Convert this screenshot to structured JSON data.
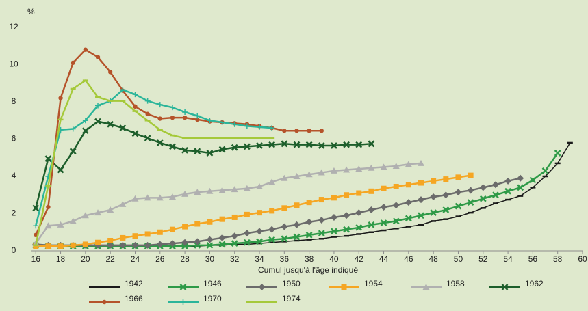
{
  "chart_data": {
    "type": "line",
    "y_unit_label": "%",
    "x_label": "Cumul jusqu'à l'âge indiqué",
    "xlim": [
      15.6,
      60
    ],
    "xticks": [
      16,
      18,
      20,
      22,
      24,
      26,
      28,
      30,
      32,
      34,
      36,
      38,
      40,
      42,
      44,
      46,
      48,
      50,
      52,
      54,
      56,
      58,
      60
    ],
    "ylim": [
      0,
      12
    ],
    "yticks": [
      0,
      2,
      4,
      6,
      8,
      10,
      12
    ],
    "grid": false,
    "series": [
      {
        "name": "1942",
        "color": "#1a1a1a",
        "marker": "dash",
        "x": [
          16,
          17,
          18,
          19,
          20,
          21,
          22,
          23,
          24,
          25,
          26,
          27,
          28,
          29,
          30,
          31,
          32,
          33,
          34,
          35,
          36,
          37,
          38,
          39,
          40,
          41,
          42,
          43,
          44,
          45,
          46,
          47,
          48,
          49,
          50,
          51,
          52,
          53,
          54,
          55,
          56,
          57,
          58,
          59
        ],
        "values": [
          0.3,
          0.25,
          0.25,
          0.25,
          0.25,
          0.25,
          0.25,
          0.25,
          0.25,
          0.25,
          0.25,
          0.25,
          0.25,
          0.25,
          0.3,
          0.3,
          0.35,
          0.35,
          0.4,
          0.45,
          0.5,
          0.55,
          0.6,
          0.65,
          0.75,
          0.8,
          0.9,
          1.0,
          1.1,
          1.2,
          1.3,
          1.4,
          1.6,
          1.7,
          1.85,
          2.05,
          2.3,
          2.55,
          2.75,
          2.95,
          3.4,
          4.0,
          4.7,
          5.8
        ]
      },
      {
        "name": "1946",
        "color": "#2e9a47",
        "marker": "x",
        "x": [
          16,
          17,
          18,
          19,
          20,
          21,
          22,
          23,
          24,
          25,
          26,
          27,
          28,
          29,
          30,
          31,
          32,
          33,
          34,
          35,
          36,
          37,
          38,
          39,
          40,
          41,
          42,
          43,
          44,
          45,
          46,
          47,
          48,
          49,
          50,
          51,
          52,
          53,
          54,
          55,
          56,
          57,
          58
        ],
        "values": [
          0.3,
          0.25,
          0.25,
          0.25,
          0.25,
          0.25,
          0.25,
          0.25,
          0.25,
          0.25,
          0.25,
          0.25,
          0.25,
          0.3,
          0.3,
          0.35,
          0.4,
          0.45,
          0.5,
          0.6,
          0.65,
          0.75,
          0.85,
          0.95,
          1.05,
          1.15,
          1.25,
          1.4,
          1.5,
          1.6,
          1.75,
          1.9,
          2.05,
          2.2,
          2.4,
          2.6,
          2.8,
          3.0,
          3.2,
          3.4,
          3.8,
          4.3,
          5.25
        ]
      },
      {
        "name": "1950",
        "color": "#6b6b6b",
        "marker": "diamond",
        "x": [
          16,
          17,
          18,
          19,
          20,
          21,
          22,
          23,
          24,
          25,
          26,
          27,
          28,
          29,
          30,
          31,
          32,
          33,
          34,
          35,
          36,
          37,
          38,
          39,
          40,
          41,
          42,
          43,
          44,
          45,
          46,
          47,
          48,
          49,
          50,
          51,
          52,
          53,
          54,
          55
        ],
        "values": [
          0.35,
          0.3,
          0.3,
          0.3,
          0.3,
          0.3,
          0.3,
          0.3,
          0.3,
          0.3,
          0.35,
          0.4,
          0.45,
          0.5,
          0.6,
          0.7,
          0.8,
          0.95,
          1.05,
          1.15,
          1.3,
          1.4,
          1.55,
          1.65,
          1.8,
          1.9,
          2.05,
          2.2,
          2.35,
          2.45,
          2.6,
          2.75,
          2.9,
          3.0,
          3.15,
          3.25,
          3.4,
          3.55,
          3.75,
          3.9
        ]
      },
      {
        "name": "1954",
        "color": "#f5a623",
        "marker": "square",
        "x": [
          16,
          17,
          18,
          19,
          20,
          21,
          22,
          23,
          24,
          25,
          26,
          27,
          28,
          29,
          30,
          31,
          32,
          33,
          34,
          35,
          36,
          37,
          38,
          39,
          40,
          41,
          42,
          43,
          44,
          45,
          46,
          47,
          48,
          49,
          50,
          51
        ],
        "values": [
          0.25,
          0.25,
          0.25,
          0.3,
          0.35,
          0.45,
          0.55,
          0.7,
          0.8,
          0.9,
          1.0,
          1.15,
          1.3,
          1.45,
          1.55,
          1.7,
          1.8,
          1.95,
          2.05,
          2.15,
          2.3,
          2.45,
          2.6,
          2.75,
          2.85,
          3.0,
          3.1,
          3.2,
          3.35,
          3.45,
          3.55,
          3.65,
          3.75,
          3.85,
          3.95,
          4.05
        ]
      },
      {
        "name": "1958",
        "color": "#b0b0b0",
        "marker": "triangle",
        "x": [
          16,
          17,
          18,
          19,
          20,
          21,
          22,
          23,
          24,
          25,
          26,
          27,
          28,
          29,
          30,
          31,
          32,
          33,
          34,
          35,
          36,
          37,
          38,
          39,
          40,
          41,
          42,
          43,
          44,
          45,
          46,
          47
        ],
        "values": [
          0.4,
          1.35,
          1.4,
          1.6,
          1.9,
          2.05,
          2.2,
          2.5,
          2.8,
          2.85,
          2.85,
          2.9,
          3.05,
          3.15,
          3.2,
          3.25,
          3.3,
          3.35,
          3.45,
          3.7,
          3.9,
          4.0,
          4.1,
          4.2,
          4.3,
          4.35,
          4.4,
          4.45,
          4.5,
          4.55,
          4.65,
          4.7
        ]
      },
      {
        "name": "1962",
        "color": "#1d5e2b",
        "marker": "x",
        "x": [
          16,
          17,
          18,
          19,
          20,
          21,
          22,
          23,
          24,
          25,
          26,
          27,
          28,
          29,
          30,
          31,
          32,
          33,
          34,
          35,
          36,
          37,
          38,
          39,
          40,
          41,
          42,
          43
        ],
        "values": [
          2.3,
          4.95,
          4.35,
          5.35,
          6.45,
          6.95,
          6.8,
          6.6,
          6.3,
          6.05,
          5.8,
          5.6,
          5.4,
          5.35,
          5.25,
          5.45,
          5.55,
          5.6,
          5.65,
          5.7,
          5.75,
          5.7,
          5.7,
          5.65,
          5.65,
          5.7,
          5.7,
          5.75
        ]
      },
      {
        "name": "1966",
        "color": "#b5532a",
        "marker": "circle",
        "x": [
          16,
          17,
          18,
          19,
          20,
          21,
          22,
          23,
          24,
          25,
          26,
          27,
          28,
          29,
          30,
          31,
          32,
          33,
          34,
          35,
          36,
          37,
          38,
          39
        ],
        "values": [
          0.85,
          2.35,
          8.2,
          10.1,
          10.8,
          10.4,
          9.6,
          8.6,
          7.75,
          7.35,
          7.1,
          7.15,
          7.15,
          7.05,
          6.95,
          6.9,
          6.85,
          6.8,
          6.7,
          6.6,
          6.45,
          6.45,
          6.45,
          6.45
        ]
      },
      {
        "name": "1970",
        "color": "#2bb59a",
        "marker": "plus",
        "x": [
          16,
          17,
          18,
          19,
          20,
          21,
          22,
          23,
          24,
          25,
          26,
          27,
          28,
          29,
          30,
          31,
          32,
          33,
          34,
          35
        ],
        "values": [
          1.35,
          4.0,
          6.5,
          6.55,
          7.0,
          7.8,
          8.05,
          8.65,
          8.4,
          8.05,
          7.85,
          7.7,
          7.45,
          7.25,
          7.0,
          6.9,
          6.8,
          6.7,
          6.65,
          6.6
        ]
      },
      {
        "name": "1974",
        "color": "#a5c93a",
        "marker": "dash",
        "x": [
          16,
          17,
          18,
          19,
          20,
          21,
          22,
          23,
          24,
          25,
          26,
          27,
          28,
          29,
          30,
          31,
          32,
          33,
          34,
          35
        ],
        "values": [
          0.3,
          3.5,
          7.05,
          8.7,
          9.15,
          8.25,
          8.05,
          8.05,
          7.5,
          7.0,
          6.5,
          6.2,
          6.05,
          6.05,
          6.05,
          6.05,
          6.05,
          6.05,
          6.05,
          6.05
        ]
      }
    ]
  }
}
